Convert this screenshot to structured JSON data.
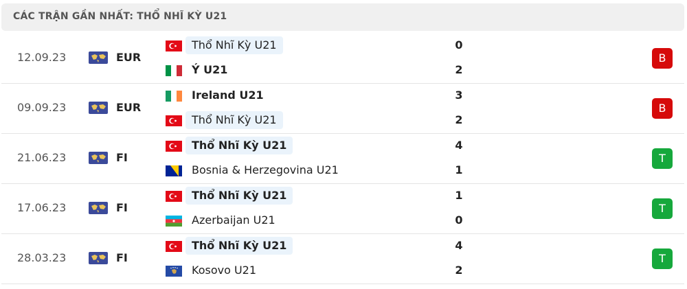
{
  "header": {
    "title": "CÁC TRẬN GẦN NHẤT: THỔ NHĨ KỲ U21"
  },
  "matches": [
    {
      "date": "12.09.23",
      "competition": "EUR",
      "home": {
        "team": "Thổ Nhĩ Kỳ U21",
        "score": 0
      },
      "away": {
        "team": "Ý U21",
        "score": 2
      },
      "result": "B"
    },
    {
      "date": "09.09.23",
      "competition": "EUR",
      "home": {
        "team": "Ireland U21",
        "score": 3
      },
      "away": {
        "team": "Thổ Nhĩ Kỳ U21",
        "score": 2
      },
      "result": "B"
    },
    {
      "date": "21.06.23",
      "competition": "FI",
      "home": {
        "team": "Thổ Nhĩ Kỳ U21",
        "score": 4
      },
      "away": {
        "team": "Bosnia & Herzegovina U21",
        "score": 1
      },
      "result": "T"
    },
    {
      "date": "17.06.23",
      "competition": "FI",
      "home": {
        "team": "Thổ Nhĩ Kỳ U21",
        "score": 1
      },
      "away": {
        "team": "Azerbaijan U21",
        "score": 0
      },
      "result": "T"
    },
    {
      "date": "28.03.23",
      "competition": "FI",
      "home": {
        "team": "Thổ Nhĩ Kỳ U21",
        "score": 4
      },
      "away": {
        "team": "Kosovo U21",
        "score": 2
      },
      "result": "T"
    }
  ]
}
